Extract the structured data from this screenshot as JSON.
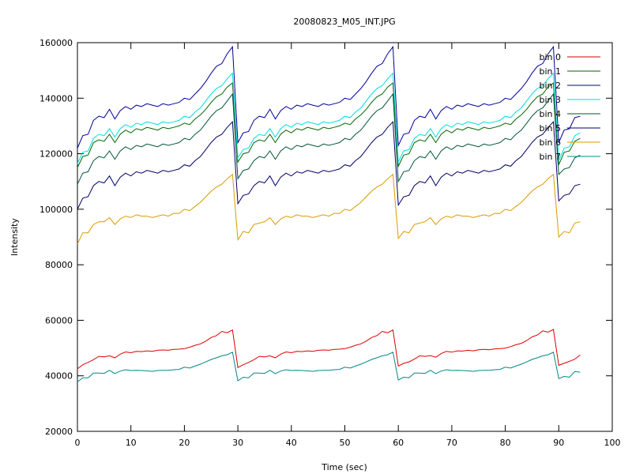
{
  "chart_data": {
    "type": "line",
    "title": "20080823_M05_INT.JPG",
    "xlabel": "Time (sec)",
    "ylabel": "Intensity",
    "xlim": [
      0,
      100
    ],
    "ylim": [
      20000,
      160000
    ],
    "xticks": [
      0,
      10,
      20,
      30,
      40,
      50,
      60,
      70,
      80,
      90,
      100
    ],
    "yticks": [
      20000,
      40000,
      60000,
      80000,
      100000,
      120000,
      140000,
      160000
    ],
    "grid": false,
    "legend": "top-right",
    "x": [
      0,
      1,
      2,
      3,
      4,
      5,
      6,
      7,
      8,
      9,
      10,
      11,
      12,
      13,
      14,
      15,
      16,
      17,
      18,
      19,
      20,
      21,
      22,
      23,
      24,
      25,
      26,
      27,
      28,
      29,
      30,
      31,
      32,
      33,
      34,
      35,
      36,
      37,
      38,
      39,
      40,
      41,
      42,
      43,
      44,
      45,
      46,
      47,
      48,
      49,
      50,
      51,
      52,
      53,
      54,
      55,
      56,
      57,
      58,
      59,
      60,
      61,
      62,
      63,
      64,
      65,
      66,
      67,
      68,
      69,
      70,
      71,
      72,
      73,
      74,
      75,
      76,
      77,
      78,
      79,
      80,
      81,
      82,
      83,
      84,
      85,
      86,
      87,
      88,
      89,
      90,
      91,
      92,
      93,
      94
    ],
    "series": [
      {
        "name": "bin 0",
        "color": "#dd0000",
        "values": [
          42500,
          44000,
          44800,
          45800,
          47000,
          46800,
          47200,
          46500,
          47800,
          48600,
          48300,
          48800,
          48700,
          49000,
          48800,
          49200,
          49300,
          49200,
          49500,
          49600,
          49800,
          50300,
          51000,
          51500,
          52500,
          53800,
          54500,
          56000,
          55500,
          56500,
          43000,
          44000,
          44800,
          45800,
          47000,
          46800,
          47200,
          46500,
          47800,
          48600,
          48300,
          48800,
          48700,
          49000,
          48800,
          49200,
          49300,
          49200,
          49500,
          49600,
          49800,
          50300,
          51000,
          51500,
          52500,
          53800,
          54500,
          56000,
          55500,
          56500,
          43500,
          44500,
          45000,
          46000,
          47200,
          47000,
          47300,
          46700,
          48000,
          48800,
          48500,
          49000,
          48900,
          49200,
          49000,
          49400,
          49500,
          49400,
          49700,
          49800,
          50000,
          50500,
          51200,
          51700,
          52700,
          54000,
          54700,
          56200,
          55700,
          56700,
          43800,
          44500,
          45200,
          46000,
          47500
        ]
      },
      {
        "name": "bin 1",
        "color": "#006600",
        "values": [
          115000,
          119000,
          119500,
          124000,
          125000,
          124500,
          127000,
          124000,
          127000,
          128500,
          127500,
          129000,
          128500,
          129500,
          129000,
          128500,
          129500,
          129000,
          129500,
          130000,
          131000,
          130500,
          132500,
          134000,
          136000,
          138500,
          140500,
          141500,
          144000,
          145500,
          117000,
          120000,
          120500,
          124000,
          125000,
          124500,
          127000,
          124000,
          127000,
          128500,
          127500,
          129000,
          128500,
          129500,
          129000,
          128500,
          129500,
          129000,
          129500,
          130000,
          131000,
          130500,
          132500,
          134000,
          136000,
          138500,
          140500,
          141500,
          144000,
          145500,
          115500,
          119500,
          120000,
          124000,
          125000,
          124500,
          127000,
          124000,
          127000,
          128500,
          127500,
          129000,
          128500,
          129500,
          129000,
          128500,
          129500,
          129000,
          129500,
          130000,
          131000,
          130500,
          132500,
          134000,
          136000,
          138500,
          140500,
          141500,
          144000,
          145500,
          116000,
          120500,
          121000,
          124500,
          125500
        ]
      },
      {
        "name": "bin 2",
        "color": "#000099",
        "values": [
          122000,
          126500,
          127000,
          132000,
          133500,
          133000,
          136000,
          132500,
          135500,
          137000,
          136000,
          137500,
          137000,
          138000,
          137500,
          137000,
          138000,
          137500,
          138000,
          138500,
          140000,
          139500,
          141500,
          143500,
          146000,
          149000,
          151500,
          152500,
          156000,
          158500,
          124000,
          127500,
          128000,
          132000,
          133500,
          133000,
          136000,
          132500,
          135500,
          137000,
          136000,
          137500,
          137000,
          138000,
          137500,
          137000,
          138000,
          137500,
          138000,
          138500,
          140000,
          139500,
          141500,
          143500,
          146000,
          149000,
          151500,
          152500,
          156000,
          158500,
          123000,
          127000,
          127500,
          132000,
          133500,
          133000,
          136000,
          132500,
          135500,
          137000,
          136000,
          137500,
          137000,
          138000,
          137500,
          137000,
          138000,
          137500,
          138000,
          138500,
          140000,
          139500,
          141500,
          143500,
          146000,
          149000,
          151500,
          152500,
          156000,
          158500,
          124000,
          128500,
          129000,
          133000,
          133500
        ]
      },
      {
        "name": "bin 3",
        "color": "#00dddd",
        "values": [
          116500,
          120500,
          121000,
          125500,
          127000,
          126500,
          129000,
          126000,
          129000,
          130500,
          129500,
          131000,
          130500,
          131500,
          131000,
          130500,
          131500,
          131000,
          131500,
          132000,
          133500,
          133000,
          135000,
          136500,
          139000,
          141500,
          143500,
          144500,
          147000,
          149000,
          118500,
          121500,
          122000,
          125500,
          127000,
          126500,
          129000,
          126000,
          129000,
          130500,
          129500,
          131000,
          130500,
          131500,
          131000,
          130500,
          131500,
          131000,
          131500,
          132000,
          133500,
          133000,
          135000,
          136500,
          139000,
          141500,
          143500,
          144500,
          147000,
          149000,
          117000,
          121000,
          121500,
          125500,
          127000,
          126500,
          129000,
          126000,
          129000,
          130500,
          129500,
          131000,
          130500,
          131500,
          131000,
          130500,
          131500,
          131000,
          131500,
          132000,
          133500,
          133000,
          135000,
          136500,
          139000,
          141500,
          143500,
          144500,
          147000,
          149000,
          117500,
          122000,
          122500,
          126500,
          127500
        ]
      },
      {
        "name": "bin 4",
        "color": "#005533",
        "values": [
          109000,
          113000,
          113500,
          117500,
          119000,
          118500,
          121000,
          118000,
          121000,
          122500,
          121500,
          123000,
          122500,
          123500,
          123000,
          122500,
          123500,
          123000,
          123500,
          124000,
          125500,
          125000,
          127000,
          128500,
          131000,
          133500,
          135500,
          136500,
          139000,
          141500,
          111000,
          114000,
          114500,
          117500,
          119000,
          118500,
          121000,
          118000,
          121000,
          122500,
          121500,
          123000,
          122500,
          123500,
          123000,
          122500,
          123500,
          123000,
          123500,
          124000,
          125500,
          125000,
          127000,
          128500,
          131000,
          133500,
          135500,
          136500,
          139000,
          141500,
          110000,
          113500,
          114000,
          117500,
          119000,
          118500,
          121000,
          118000,
          121000,
          122500,
          121500,
          123000,
          122500,
          123500,
          123000,
          122500,
          123500,
          123000,
          123500,
          124000,
          125500,
          125000,
          127000,
          128500,
          131000,
          133500,
          135500,
          136500,
          139000,
          141500,
          112500,
          114500,
          115000,
          118500,
          119500
        ]
      },
      {
        "name": "bin 5",
        "color": "#000066",
        "values": [
          100000,
          104000,
          104500,
          108500,
          110000,
          109500,
          112000,
          108500,
          111500,
          113000,
          112000,
          113500,
          113000,
          114000,
          113500,
          113000,
          114000,
          113500,
          114000,
          114500,
          116000,
          115500,
          117500,
          119000,
          121500,
          124000,
          126000,
          127000,
          129500,
          131500,
          102000,
          105000,
          105500,
          108500,
          110000,
          109500,
          112000,
          108500,
          111500,
          113000,
          112000,
          113500,
          113000,
          114000,
          113500,
          113000,
          114000,
          113500,
          114000,
          114500,
          116000,
          115500,
          117500,
          119000,
          121500,
          124000,
          126000,
          127000,
          129500,
          131500,
          101500,
          104500,
          105000,
          108500,
          110000,
          109500,
          112000,
          108500,
          111500,
          113000,
          112000,
          113500,
          113000,
          114000,
          113500,
          113000,
          114000,
          113500,
          114000,
          114500,
          116000,
          115500,
          117500,
          119000,
          121500,
          124000,
          126000,
          127000,
          129500,
          131500,
          103000,
          105000,
          105500,
          108500,
          109000
        ]
      },
      {
        "name": "bin 6",
        "color": "#dd9900",
        "values": [
          87500,
          91500,
          91500,
          94500,
          95500,
          95500,
          97000,
          94500,
          96500,
          97500,
          97000,
          98000,
          97500,
          97500,
          97000,
          97500,
          98000,
          97500,
          98500,
          98500,
          100000,
          99500,
          101000,
          102500,
          104500,
          106500,
          108000,
          109000,
          111000,
          112500,
          89000,
          92000,
          91500,
          94500,
          95000,
          95500,
          97000,
          94500,
          96500,
          97500,
          97000,
          98000,
          97500,
          97500,
          97000,
          97500,
          98000,
          97500,
          98500,
          98500,
          100000,
          99500,
          101000,
          102500,
          104500,
          106500,
          108000,
          109000,
          111000,
          112500,
          89500,
          92000,
          91500,
          94500,
          95000,
          95500,
          97000,
          94500,
          96500,
          97500,
          97000,
          98000,
          97500,
          97500,
          97000,
          97500,
          98000,
          97500,
          98500,
          98500,
          100000,
          99500,
          101000,
          102500,
          104500,
          106500,
          108000,
          109000,
          111000,
          112500,
          90000,
          92000,
          91500,
          95000,
          95500
        ]
      },
      {
        "name": "bin 7",
        "color": "#008888",
        "values": [
          37800,
          39300,
          39300,
          41000,
          41000,
          40900,
          42000,
          40800,
          41700,
          42200,
          41900,
          42000,
          41900,
          41800,
          41600,
          41900,
          42000,
          42000,
          42200,
          42300,
          43100,
          42800,
          43500,
          44200,
          45000,
          45900,
          46500,
          47200,
          47600,
          48500,
          38200,
          39500,
          39300,
          41000,
          41000,
          40900,
          42000,
          40800,
          41700,
          42200,
          41900,
          42000,
          41900,
          41800,
          41600,
          41900,
          42000,
          42000,
          42200,
          42300,
          43100,
          42800,
          43500,
          44200,
          45000,
          45900,
          46500,
          47200,
          47600,
          48500,
          38500,
          39500,
          39300,
          41000,
          41000,
          40900,
          42000,
          40800,
          41700,
          42200,
          41900,
          42000,
          41900,
          41800,
          41600,
          41900,
          42000,
          42000,
          42200,
          42300,
          43100,
          42800,
          43500,
          44200,
          45000,
          45900,
          46500,
          47200,
          47600,
          48500,
          39000,
          39800,
          39500,
          41500,
          41300
        ]
      }
    ]
  }
}
